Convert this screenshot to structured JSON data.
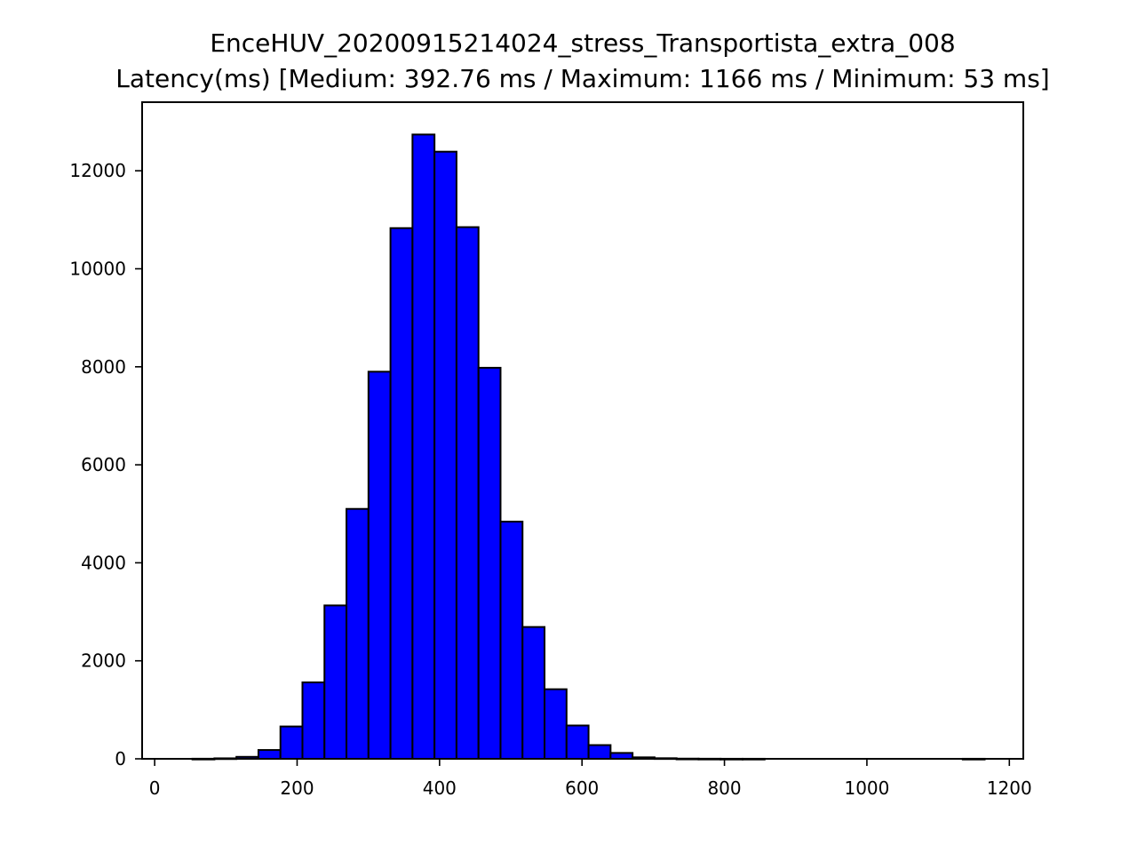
{
  "chart_data": {
    "type": "bar",
    "title": "EnceHUV_20200915214024_stress_Transportista_extra_008",
    "subtitle": "Latency(ms) [Medium: 392.76 ms / Maximum: 1166 ms / Minimum: 53 ms]",
    "xlabel": "",
    "ylabel": "",
    "xlim": [
      -17.6,
      1219.6
    ],
    "ylim": [
      0,
      13400
    ],
    "x_ticks": [
      0,
      200,
      400,
      600,
      800,
      1000,
      1200
    ],
    "y_ticks": [
      0,
      2000,
      4000,
      6000,
      8000,
      10000,
      12000
    ],
    "x_tick_labels": [
      "0",
      "200",
      "400",
      "600",
      "800",
      "1000",
      "1200"
    ],
    "y_tick_labels": [
      "0",
      "2000",
      "4000",
      "6000",
      "8000",
      "10000",
      "12000"
    ],
    "grid": false,
    "legend": "none",
    "bar_color": "#0000ff",
    "edge_color": "#000000",
    "bin_width": 30.9,
    "bins": [
      {
        "x0": 53.0,
        "count": 2
      },
      {
        "x0": 83.9,
        "count": 10
      },
      {
        "x0": 114.8,
        "count": 40
      },
      {
        "x0": 145.7,
        "count": 180
      },
      {
        "x0": 176.6,
        "count": 660
      },
      {
        "x0": 207.5,
        "count": 1560
      },
      {
        "x0": 238.4,
        "count": 3130
      },
      {
        "x0": 269.3,
        "count": 5100
      },
      {
        "x0": 300.2,
        "count": 7900
      },
      {
        "x0": 331.1,
        "count": 10830
      },
      {
        "x0": 362.0,
        "count": 12740
      },
      {
        "x0": 392.9,
        "count": 12390
      },
      {
        "x0": 423.8,
        "count": 10850
      },
      {
        "x0": 454.7,
        "count": 7980
      },
      {
        "x0": 485.6,
        "count": 4840
      },
      {
        "x0": 516.5,
        "count": 2690
      },
      {
        "x0": 547.4,
        "count": 1420
      },
      {
        "x0": 578.3,
        "count": 680
      },
      {
        "x0": 609.2,
        "count": 280
      },
      {
        "x0": 640.1,
        "count": 120
      },
      {
        "x0": 671.0,
        "count": 30
      },
      {
        "x0": 701.9,
        "count": 12
      },
      {
        "x0": 732.8,
        "count": 4
      },
      {
        "x0": 763.7,
        "count": 2
      },
      {
        "x0": 794.6,
        "count": 1
      },
      {
        "x0": 825.5,
        "count": 1
      },
      {
        "x0": 856.4,
        "count": 0
      },
      {
        "x0": 887.3,
        "count": 0
      },
      {
        "x0": 918.2,
        "count": 0
      },
      {
        "x0": 949.1,
        "count": 0
      },
      {
        "x0": 980.0,
        "count": 0
      },
      {
        "x0": 1010.9,
        "count": 0
      },
      {
        "x0": 1041.8,
        "count": 0
      },
      {
        "x0": 1072.7,
        "count": 0
      },
      {
        "x0": 1103.6,
        "count": 0
      },
      {
        "x0": 1134.5,
        "count": 1
      }
    ]
  }
}
